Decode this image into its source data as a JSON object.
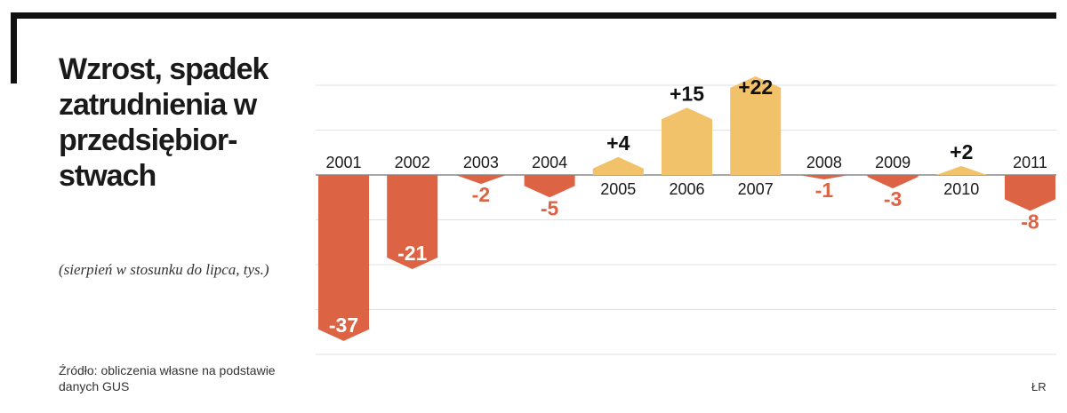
{
  "title": "Wzrost, spadek zatrudnienia w przedsiębior-stwach",
  "subtitle": "(sierpień w stosunku do lipca, tys.)",
  "source": "Źródło: obliczenia własne na podstawie danych GUS",
  "credit": "ŁR",
  "colors": {
    "negative": "#dc6444",
    "positive": "#f2c26a",
    "frame": "#111111",
    "grid": "#e2e2e2"
  },
  "chart_data": {
    "type": "bar",
    "categories": [
      "2001",
      "2002",
      "2003",
      "2004",
      "2005",
      "2006",
      "2007",
      "2008",
      "2009",
      "2010",
      "2011"
    ],
    "values": [
      -37,
      -21,
      -2,
      -5,
      4,
      15,
      22,
      -1,
      -3,
      2,
      -8
    ],
    "value_labels": [
      "-37",
      "-21",
      "-2",
      "-5",
      "+4",
      "+15",
      "+22",
      "-1",
      "-3",
      "+2",
      "-8"
    ],
    "ylim": [
      -38,
      22
    ],
    "grid": true
  }
}
